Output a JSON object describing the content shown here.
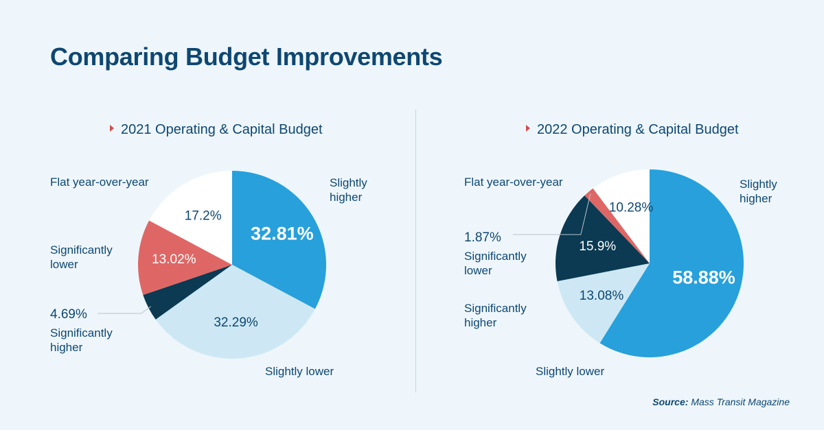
{
  "title": "Comparing Budget Improvements",
  "source": {
    "label": "Source:",
    "text": "Mass Transit Magazine"
  },
  "colors": {
    "slightly_higher": "#27a0dc",
    "slightly_lower": "#cde8f4",
    "significantly_higher": "#0b3a52",
    "significantly_lower": "#de6766",
    "flat": "#ffffff"
  },
  "chart_data": [
    {
      "type": "pie",
      "title": "2021 Operating & Capital Budget",
      "slices": [
        {
          "label": "Slightly\nhigher",
          "value": 32.81,
          "display": "32.81%",
          "color": "#27a0dc",
          "text_color": "#ffffff",
          "bold": true
        },
        {
          "label": "Slightly lower",
          "value": 32.29,
          "display": "32.29%",
          "color": "#cde8f4",
          "text_color": "#0e4771",
          "bold": false
        },
        {
          "label": "Significantly\nhigher",
          "value": 4.69,
          "display": "4.69%",
          "color": "#0b3a52",
          "text_color": "#0e4771",
          "bold": false
        },
        {
          "label": "Significantly\nlower",
          "value": 13.02,
          "display": "13.02%",
          "color": "#de6766",
          "text_color": "#ffffff",
          "bold": false
        },
        {
          "label": "Flat year-over-year",
          "value": 17.2,
          "display": "17.2%",
          "color": "#ffffff",
          "text_color": "#0e4771",
          "bold": false
        }
      ]
    },
    {
      "type": "pie",
      "title": "2022 Operating & Capital Budget",
      "slices": [
        {
          "label": "Slightly\nhigher",
          "value": 58.88,
          "display": "58.88%",
          "color": "#27a0dc",
          "text_color": "#ffffff",
          "bold": true
        },
        {
          "label": "Slightly lower",
          "value": 13.08,
          "display": "13.08%",
          "color": "#cde8f4",
          "text_color": "#0e4771",
          "bold": false
        },
        {
          "label": "Significantly\nhigher",
          "value": 15.9,
          "display": "15.9%",
          "color": "#0b3a52",
          "text_color": "#ffffff",
          "bold": false
        },
        {
          "label": "Significantly\nlower",
          "value": 1.87,
          "display": "1.87%",
          "color": "#de6766",
          "text_color": "#0e4771",
          "bold": false
        },
        {
          "label": "Flat year-over-year",
          "value": 10.28,
          "display": "10.28%",
          "color": "#ffffff",
          "text_color": "#0e4771",
          "bold": false
        }
      ]
    }
  ]
}
